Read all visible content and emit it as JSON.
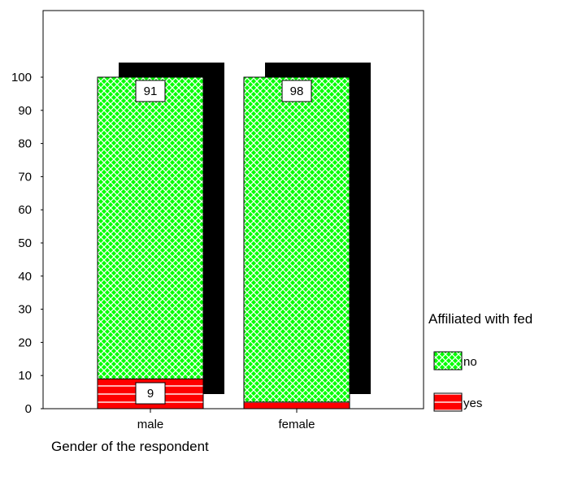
{
  "chart_data": {
    "type": "bar",
    "stacked": true,
    "categories": [
      "male",
      "female"
    ],
    "series": [
      {
        "name": "yes",
        "values": [
          9,
          2
        ],
        "color": "#ff0000",
        "pattern": "horizontal-lines"
      },
      {
        "name": "no",
        "values": [
          91,
          98
        ],
        "color": "#00ff00",
        "pattern": "crosshatch"
      }
    ],
    "data_labels": [
      {
        "category": "male",
        "series": "no",
        "text": "91"
      },
      {
        "category": "female",
        "series": "no",
        "text": "98"
      },
      {
        "category": "male",
        "series": "yes",
        "text": "9"
      }
    ],
    "xlabel": "Gender of the respondent",
    "ylabel": "",
    "ylim": [
      0,
      100
    ],
    "yticks": [
      "0",
      "10",
      "20",
      "30",
      "40",
      "50",
      "60",
      "70",
      "80",
      "90",
      "100"
    ],
    "legend": {
      "title": "Affiliated with fed",
      "position": "right",
      "items": [
        "no",
        "yes"
      ]
    },
    "shadow": true,
    "grid": false
  }
}
